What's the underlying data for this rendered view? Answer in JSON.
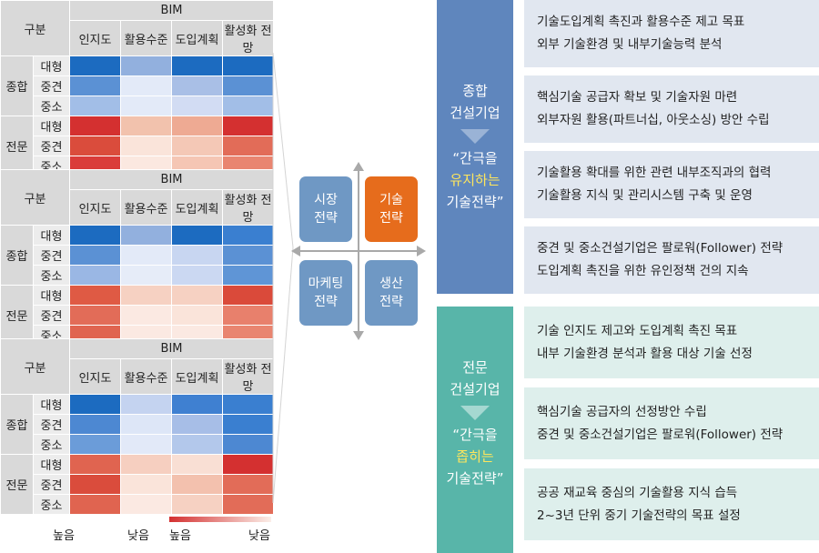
{
  "table": {
    "group_header": "구분",
    "bim_header": "BIM",
    "columns": [
      "인지도",
      "활용수준",
      "도입계획",
      "활성화 전망"
    ],
    "groups": [
      {
        "label": "종합",
        "rows": [
          "대형",
          "중견",
          "중소"
        ]
      },
      {
        "label": "전문",
        "rows": [
          "대형",
          "중견",
          "중소"
        ]
      }
    ]
  },
  "heat_tables": [
    {
      "colors": [
        [
          "#1c6bc0",
          "#92b0de",
          "#1c6bc0",
          "#1c6bc0"
        ],
        [
          "#5b91d4",
          "#e3eaf8",
          "#a9bfe6",
          "#5b91d4"
        ],
        [
          "#a2bee7",
          "#e3eaf8",
          "#d2dcf3",
          "#a2bee7"
        ],
        [
          "#d43030",
          "#f2c2ad",
          "#eeaa93",
          "#d43030"
        ],
        [
          "#da4c3c",
          "#fae4da",
          "#f4c8b6",
          "#e26c58"
        ],
        [
          "#da3c3a",
          "#fbe8e0",
          "#f5c6b4",
          "#e98570"
        ]
      ]
    },
    {
      "colors": [
        [
          "#1c6bc0",
          "#92b0de",
          "#1c6bc0",
          "#3a7fd0"
        ],
        [
          "#5b91d4",
          "#e3eaf8",
          "#c8d6f1",
          "#5b91d4"
        ],
        [
          "#9ab7e4",
          "#e6ecf8",
          "#cbd8f2",
          "#5f95d6"
        ],
        [
          "#df5a44",
          "#f6d1c2",
          "#f6d1c2",
          "#da4a3a"
        ],
        [
          "#e26c58",
          "#fbe9e2",
          "#fae4da",
          "#e8806c"
        ],
        [
          "#e06450",
          "#fbe9e2",
          "#fbe9e2",
          "#e98570"
        ]
      ]
    },
    {
      "colors": [
        [
          "#1c6bc0",
          "#c4d3f0",
          "#3f80d1",
          "#3a7fd0"
        ],
        [
          "#4d88d2",
          "#dde6f7",
          "#a7bee7",
          "#3a7fd0"
        ],
        [
          "#6b9cd9",
          "#e2e9f8",
          "#b3c8eb",
          "#4d88d2"
        ],
        [
          "#e06450",
          "#f6cfc0",
          "#f9dfd4",
          "#d43030"
        ],
        [
          "#da4c3c",
          "#fae4da",
          "#f3c1ae",
          "#e26c58"
        ],
        [
          "#e06450",
          "#fbe9e2",
          "#f6d1c2",
          "#e26c58"
        ]
      ]
    }
  ],
  "legend": {
    "blue_high": "높음",
    "blue_low": "낮음",
    "red_high": "높음",
    "red_low": "낮음",
    "blue_from": "#1c6bc0",
    "blue_to": "#f0f4fb",
    "red_from": "#d43030",
    "red_to": "#fbeee8"
  },
  "quadrant": {
    "top_left": "시장\n전략",
    "top_right": "기술\n전략",
    "bottom_left": "마케팅\n전략",
    "bottom_right": "생산\n전략"
  },
  "general": {
    "title": "종합\n건설기업",
    "quote_open": "“간극을",
    "highlight": "유지하는",
    "quote_close": "기술전략”",
    "color": "#5f86bd",
    "items": [
      [
        "기술도입계획 촉진과 활용수준 제고 목표",
        "외부 기술환경 및 내부기술능력 분석"
      ],
      [
        "핵심기술 공급자 확보 및 기술자원 마련",
        "외부자원 활용(파트너십, 아웃소싱) 방안 수립"
      ],
      [
        "기술활용 확대를 위한 관련 내부조직과의 협력",
        "기술활용 지식 및 관리시스템 구축 및 운영"
      ],
      [
        "중견 및 중소건설기업은 팔로워(Follower) 전략",
        "도입계획 촉진을 위한 유인정책 건의 지속"
      ]
    ]
  },
  "special": {
    "title": "전문\n건설기업",
    "quote_open": "“간극을",
    "highlight": "좁히는",
    "quote_close": "기술전략”",
    "color": "#58b5a9",
    "items": [
      [
        "기술 인지도 제고와 도입계획 촉진 목표",
        "내부 기술환경 분석과 활용 대상 기술 선정"
      ],
      [
        "핵심기술 공급자의 선정방안 수립",
        "중견 및 중소건설기업은 팔로워(Follower) 전략"
      ],
      [
        "공공 재교육 중심의 기술활용 지식 습득",
        "2~3년 단위 중기 기술전략의 목표 설정"
      ]
    ]
  }
}
